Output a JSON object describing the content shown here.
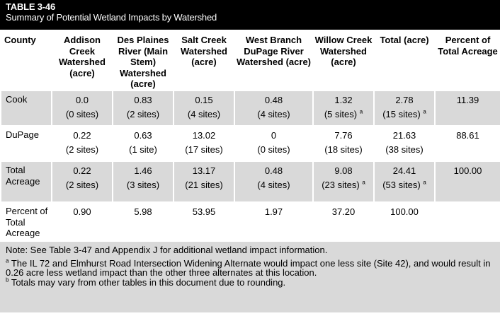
{
  "title": {
    "table_number": "TABLE 3-46",
    "caption": "Summary of Potential Wetland Impacts by Watershed"
  },
  "headers": [
    "County",
    "Addison Creek Watershed (acre)",
    "Des Plaines River (Main Stem) Watershed (acre)",
    "Salt Creek Watershed (acre)",
    "West Branch DuPage River Watershed (acre)",
    "Willow Creek Watershed (acre)",
    "Total (acre)",
    "Percent of Total Acreage"
  ],
  "rows": [
    {
      "county": "Cook",
      "cells": [
        {
          "value": "0.0",
          "sites": "(0 sites)",
          "sup": ""
        },
        {
          "value": "0.83",
          "sites": "(2 sites)",
          "sup": ""
        },
        {
          "value": "0.15",
          "sites": "(4 sites)",
          "sup": ""
        },
        {
          "value": "0.48",
          "sites": "(4 sites)",
          "sup": ""
        },
        {
          "value": "1.32",
          "sites": "(5 sites)",
          "sup": "a"
        },
        {
          "value": "2.78",
          "sites": "(15 sites)",
          "sup": "a"
        },
        {
          "value": "11.39",
          "sites": "",
          "sup": ""
        }
      ]
    },
    {
      "county": "DuPage",
      "cells": [
        {
          "value": "0.22",
          "sites": "(2 sites)",
          "sup": ""
        },
        {
          "value": "0.63",
          "sites": "(1 site)",
          "sup": ""
        },
        {
          "value": "13.02",
          "sites": "(17 sites)",
          "sup": ""
        },
        {
          "value": "0",
          "sites": "(0 sites)",
          "sup": ""
        },
        {
          "value": "7.76",
          "sites": "(18 sites)",
          "sup": ""
        },
        {
          "value": "21.63",
          "sites": "(38 sites)",
          "sup": ""
        },
        {
          "value": "88.61",
          "sites": "",
          "sup": ""
        }
      ]
    },
    {
      "county": "Total Acreage",
      "cells": [
        {
          "value": "0.22",
          "sites": "(2 sites)",
          "sup": ""
        },
        {
          "value": "1.46",
          "sites": "(3 sites)",
          "sup": ""
        },
        {
          "value": "13.17",
          "sites": "(21 sites)",
          "sup": ""
        },
        {
          "value": "0.48",
          "sites": "(4 sites)",
          "sup": ""
        },
        {
          "value": "9.08",
          "sites": "(23 sites)",
          "sup": "a"
        },
        {
          "value": "24.41",
          "sites": "(53 sites)",
          "sup": "a"
        },
        {
          "value": "100.00",
          "sites": "",
          "sup": ""
        }
      ]
    },
    {
      "county": "Percent of Total Acreage",
      "cells": [
        {
          "value": "0.90",
          "sites": "",
          "sup": ""
        },
        {
          "value": "5.98",
          "sites": "",
          "sup": ""
        },
        {
          "value": "53.95",
          "sites": "",
          "sup": ""
        },
        {
          "value": "1.97",
          "sites": "",
          "sup": ""
        },
        {
          "value": "37.20",
          "sites": "",
          "sup": ""
        },
        {
          "value": "100.00",
          "sites": "",
          "sup": ""
        },
        {
          "value": "",
          "sites": "",
          "sup": ""
        }
      ]
    }
  ],
  "notes": {
    "main": "Note: See Table 3-47 and Appendix J for additional wetland impact information.",
    "footnote_a_marker": "a",
    "footnote_a": " The IL 72 and Elmhurst Road Intersection Widening Alternate would impact one less site (Site 42), and would result in 0.26 acre less wetland impact than the other three alternates at this location.",
    "footnote_b_marker": "b",
    "footnote_b": " Totals may vary from other tables in this document due to rounding."
  }
}
